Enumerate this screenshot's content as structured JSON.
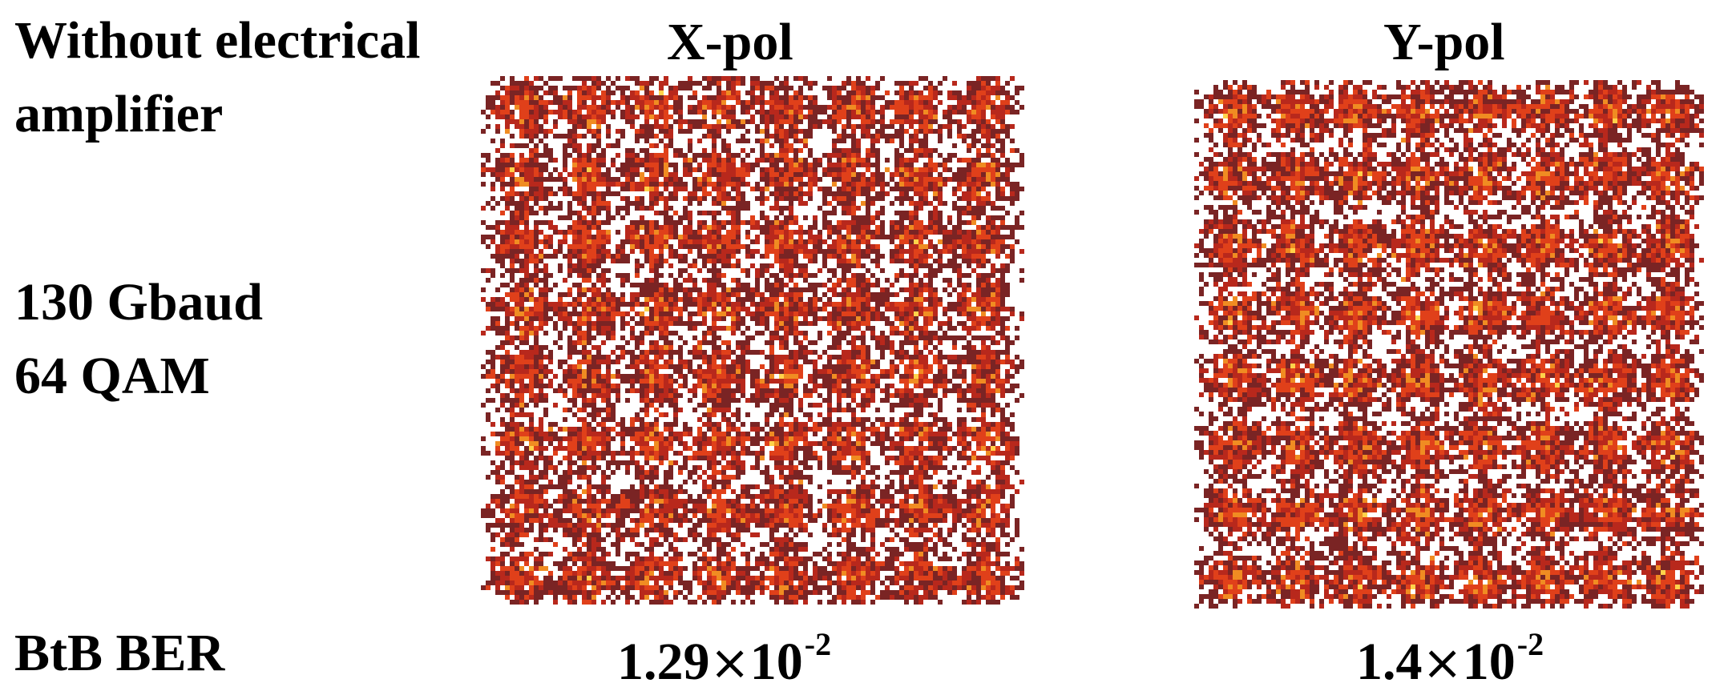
{
  "labels": {
    "condition_line1": "Without electrical",
    "condition_line2": "amplifier",
    "rate_line1": "130 Gbaud",
    "rate_line2": "64 QAM",
    "ber_label": "BtB BER"
  },
  "chart_data": [
    {
      "type": "scatter",
      "title": "X-pol",
      "modulation": "64 QAM",
      "grid": "8x8 constellation",
      "points": 64,
      "ber_mantissa": "1.29",
      "ber_base": "10",
      "ber_exponent": "-2",
      "ber": 0.0129,
      "colors": [
        "#7a2424",
        "#b8281c",
        "#e0401a",
        "#f08c22",
        "#ffd24a"
      ]
    },
    {
      "type": "scatter",
      "title": "Y-pol",
      "modulation": "64 QAM",
      "grid": "8x8 constellation",
      "points": 64,
      "ber_mantissa": "1.4",
      "ber_base": "10",
      "ber_exponent": "-2",
      "ber": 0.014,
      "colors": [
        "#7a2424",
        "#b8281c",
        "#e0401a",
        "#f08c22",
        "#ffd24a"
      ]
    }
  ]
}
